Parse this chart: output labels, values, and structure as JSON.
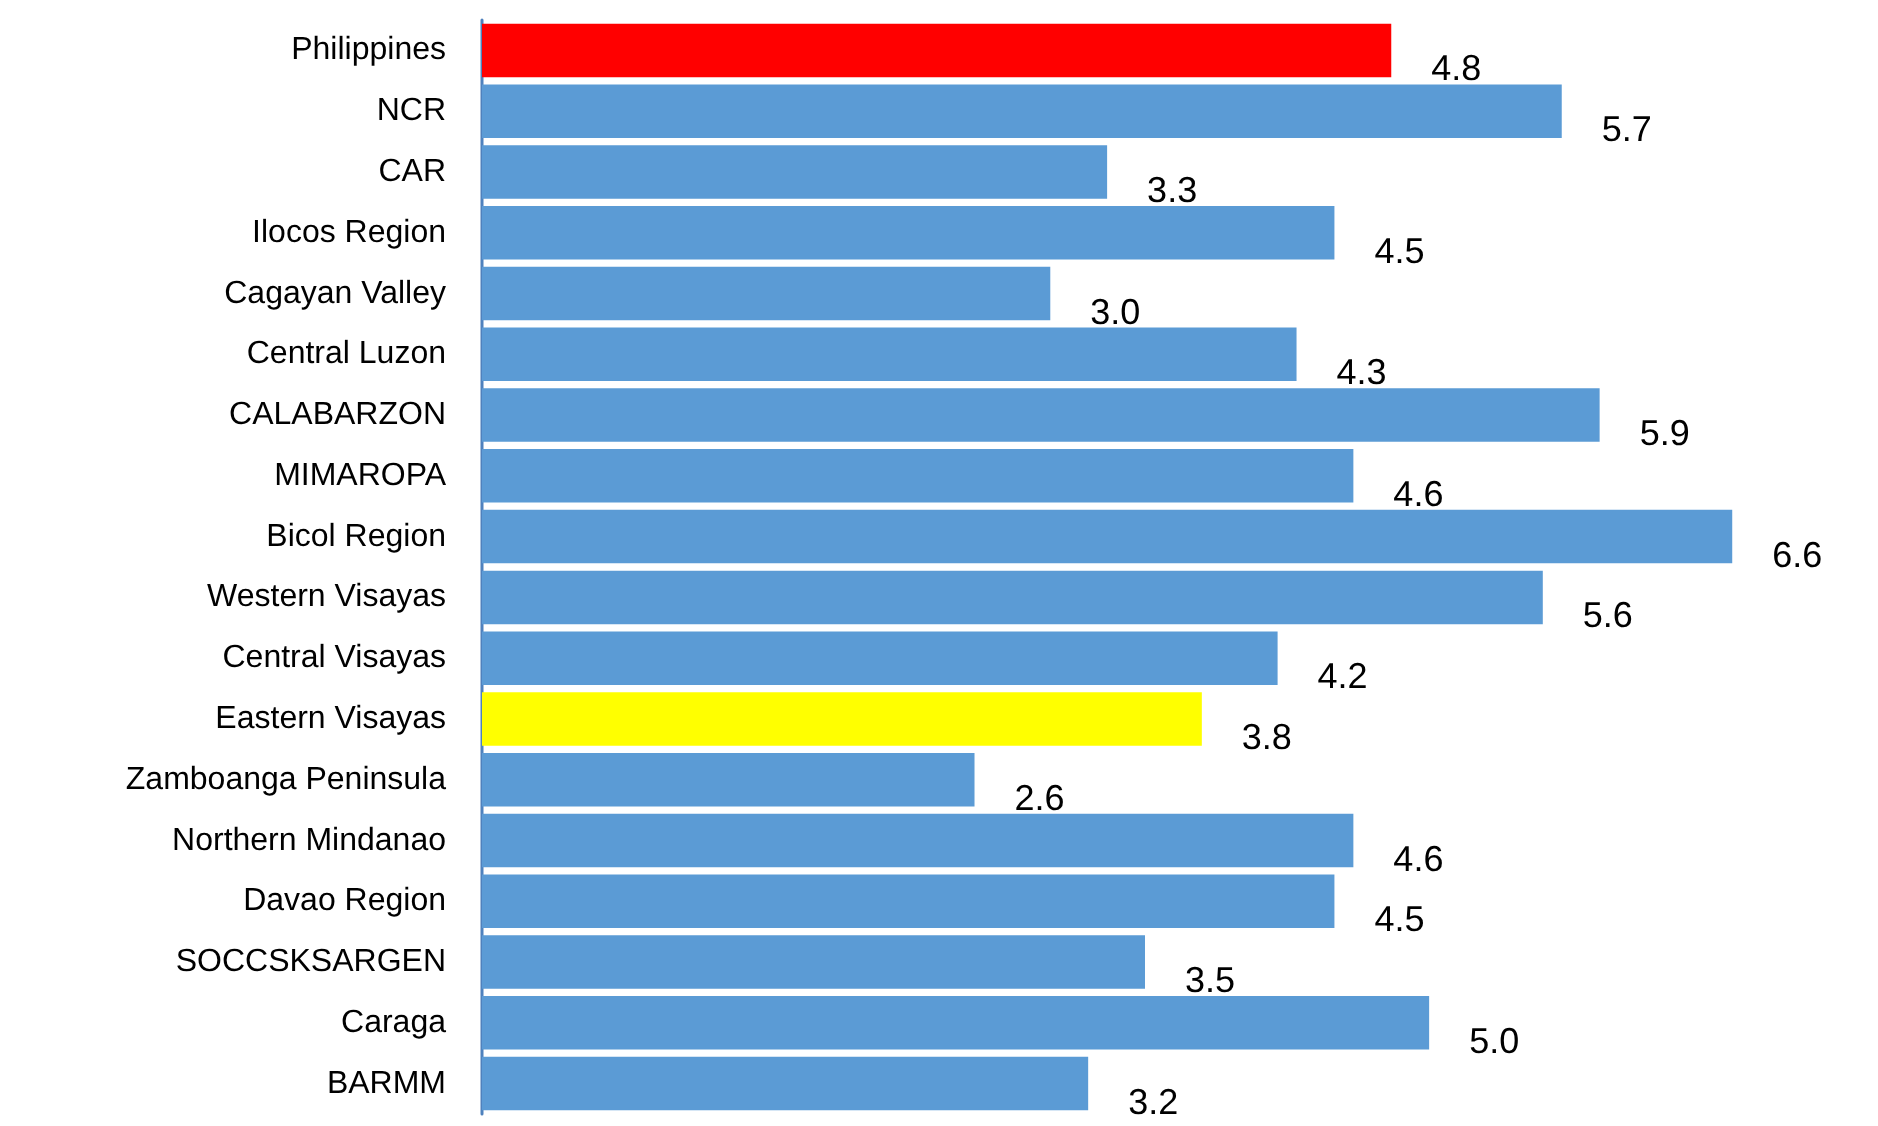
{
  "chart_data": {
    "type": "bar",
    "orientation": "horizontal",
    "categories": [
      "Philippines",
      "NCR",
      "CAR",
      "Ilocos Region",
      "Cagayan Valley",
      "Central Luzon",
      "CALABARZON",
      "MIMAROPA",
      "Bicol Region",
      "Western Visayas",
      "Central Visayas",
      "Eastern Visayas",
      "Zamboanga Peninsula",
      "Northern Mindanao",
      "Davao Region",
      "SOCCSKSARGEN",
      "Caraga",
      "BARMM"
    ],
    "values": [
      4.8,
      5.7,
      3.3,
      4.5,
      3.0,
      4.3,
      5.9,
      4.6,
      6.6,
      5.6,
      4.2,
      3.8,
      2.6,
      4.6,
      4.5,
      3.5,
      5.0,
      3.2
    ],
    "colors": [
      "#ff0000",
      "#5b9bd5",
      "#5b9bd5",
      "#5b9bd5",
      "#5b9bd5",
      "#5b9bd5",
      "#5b9bd5",
      "#5b9bd5",
      "#5b9bd5",
      "#5b9bd5",
      "#5b9bd5",
      "#ffff00",
      "#5b9bd5",
      "#5b9bd5",
      "#5b9bd5",
      "#5b9bd5",
      "#5b9bd5",
      "#5b9bd5"
    ],
    "value_labels": [
      "4.8",
      "5.7",
      "3.3",
      "4.5",
      "3.0",
      "4.3",
      "5.9",
      "4.6",
      "6.6",
      "5.6",
      "4.2",
      "3.8",
      "2.6",
      "4.6",
      "4.5",
      "3.5",
      "5.0",
      "3.2"
    ],
    "tick_labels": "y"
  }
}
